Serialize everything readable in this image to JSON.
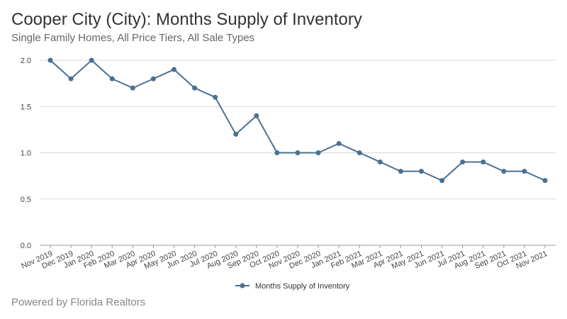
{
  "header": {
    "title": "Cooper City (City): Months Supply of Inventory",
    "subtitle": "Single Family Homes, All Price Tiers, All Sale Types"
  },
  "footer": {
    "text": "Powered by Florida Realtors"
  },
  "colors": {
    "series": "#4a7093",
    "grid": "#d9d9d9",
    "axis": "#999999"
  },
  "chart_data": {
    "type": "line",
    "title": "Cooper City (City): Months Supply of Inventory",
    "xlabel": "",
    "ylabel": "",
    "ylim": [
      0,
      2.0
    ],
    "yticks": [
      "0.0",
      "0.5",
      "1.0",
      "1.5",
      "2.0"
    ],
    "ytick_values": [
      0,
      0.5,
      1.0,
      1.5,
      2.0
    ],
    "grid": true,
    "legend_position": "bottom-center",
    "categories": [
      "Nov 2019",
      "Dec 2019",
      "Jan 2020",
      "Feb 2020",
      "Mar 2020",
      "Apr 2020",
      "May 2020",
      "Jun 2020",
      "Jul 2020",
      "Aug 2020",
      "Sep 2020",
      "Oct 2020",
      "Nov 2020",
      "Dec 2020",
      "Jan 2021",
      "Feb 2021",
      "Mar 2021",
      "Apr 2021",
      "May 2021",
      "Jun 2021",
      "Jul 2021",
      "Aug 2021",
      "Sep 2021",
      "Oct 2021",
      "Nov 2021"
    ],
    "series": [
      {
        "name": "Months Supply of Inventory",
        "values": [
          2.0,
          1.8,
          2.0,
          1.8,
          1.7,
          1.8,
          1.9,
          1.7,
          1.6,
          1.2,
          1.4,
          1.0,
          1.0,
          1.0,
          1.1,
          1.0,
          0.9,
          0.8,
          0.8,
          0.7,
          0.9,
          0.9,
          0.8,
          0.8,
          0.7
        ]
      }
    ]
  }
}
